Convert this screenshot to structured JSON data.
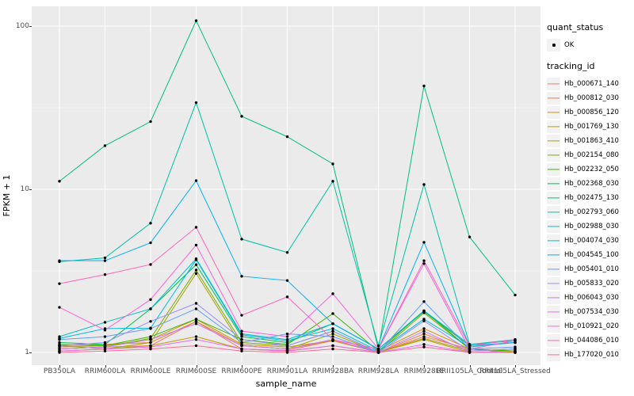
{
  "chart_data": {
    "type": "line",
    "title": "",
    "xlabel": "sample_name",
    "ylabel": "FPKM + 1",
    "y_scale": "log10",
    "ylim": [
      0.84,
      131
    ],
    "y_ticks": [
      1,
      10,
      100
    ],
    "y_minor_ticks": [
      3.1623,
      31.623
    ],
    "grid": true,
    "legend_position": "right",
    "panel_bg": "#EBEBEB",
    "grid_color": "#FFFFFF",
    "point_color": "#000000",
    "x_categories": [
      "PB350LA",
      "RRIM600LA",
      "RRIM600LE",
      "RRIM600SE",
      "RRIM600PE",
      "RRIM901LA",
      "RRIM928BA",
      "RRIM928LA",
      "RRIM928LE",
      "RRII105LA_Control",
      "RRII105LA_Stressed"
    ],
    "series": [
      {
        "name": "Hb_000671_140",
        "color": "#F8766D",
        "values": [
          1.05,
          1.08,
          1.1,
          1.55,
          1.05,
          1.03,
          1.18,
          1.0,
          1.25,
          1.05,
          1.0
        ]
      },
      {
        "name": "Hb_000812_030",
        "color": "#EA8331",
        "values": [
          1.1,
          1.12,
          1.15,
          1.55,
          1.1,
          1.05,
          1.18,
          1.0,
          1.3,
          1.02,
          1.05
        ]
      },
      {
        "name": "Hb_000856_120",
        "color": "#D89000",
        "values": [
          1.08,
          1.1,
          1.2,
          1.6,
          1.12,
          1.08,
          1.18,
          1.02,
          1.4,
          1.05,
          1.02
        ]
      },
      {
        "name": "Hb_001769_130",
        "color": "#C09B00",
        "values": [
          1.02,
          1.05,
          1.1,
          1.25,
          1.05,
          1.02,
          1.1,
          1.0,
          1.2,
          1.0,
          1.0
        ]
      },
      {
        "name": "Hb_001863_410",
        "color": "#A3A500",
        "values": [
          1.1,
          1.05,
          1.15,
          3.05,
          1.1,
          1.05,
          1.3,
          1.0,
          1.22,
          1.02,
          1.05
        ]
      },
      {
        "name": "Hb_002154_080",
        "color": "#7CAE00",
        "values": [
          1.05,
          1.08,
          1.22,
          3.2,
          1.15,
          1.1,
          1.35,
          1.0,
          1.75,
          1.05,
          1.0
        ]
      },
      {
        "name": "Hb_002232_050",
        "color": "#39B600",
        "values": [
          1.12,
          1.1,
          1.25,
          1.6,
          1.2,
          1.12,
          1.73,
          1.02,
          1.8,
          1.05,
          1.02
        ]
      },
      {
        "name": "Hb_002368_030",
        "color": "#00BB4E",
        "values": [
          1.15,
          1.12,
          1.85,
          3.45,
          1.25,
          1.15,
          1.5,
          1.05,
          1.78,
          1.1,
          1.15
        ]
      },
      {
        "name": "Hb_002475_130",
        "color": "#00BF7D",
        "values": [
          11.2,
          18.5,
          26.0,
          108.0,
          28.0,
          21.0,
          14.3,
          1.05,
          43.0,
          5.1,
          2.25
        ]
      },
      {
        "name": "Hb_002793_060",
        "color": "#00C1A3",
        "values": [
          3.6,
          3.8,
          6.2,
          34.0,
          4.95,
          4.1,
          11.2,
          1.1,
          10.7,
          1.12,
          1.2
        ]
      },
      {
        "name": "Hb_002988_030",
        "color": "#00BFC4",
        "values": [
          1.25,
          1.53,
          1.85,
          3.75,
          1.3,
          1.2,
          1.5,
          1.05,
          1.8,
          1.12,
          1.18
        ]
      },
      {
        "name": "Hb_004074_030",
        "color": "#00BAE0",
        "values": [
          1.22,
          1.4,
          1.41,
          3.7,
          1.28,
          1.18,
          1.4,
          1.02,
          1.6,
          1.08,
          1.15
        ]
      },
      {
        "name": "Hb_004545_100",
        "color": "#00B0F6",
        "values": [
          3.65,
          3.65,
          4.7,
          11.3,
          2.93,
          2.76,
          1.5,
          1.05,
          4.73,
          1.1,
          1.15
        ]
      },
      {
        "name": "Hb_005401_010",
        "color": "#619CFF",
        "values": [
          1.2,
          1.25,
          1.4,
          1.85,
          1.15,
          1.3,
          1.25,
          1.0,
          2.05,
          1.05,
          1.08
        ]
      },
      {
        "name": "Hb_005833_020",
        "color": "#9590FF",
        "values": [
          1.1,
          1.15,
          1.55,
          2.0,
          1.2,
          1.1,
          1.35,
          1.0,
          1.56,
          1.02,
          1.05
        ]
      },
      {
        "name": "Hb_006043_030",
        "color": "#C77CFF",
        "values": [
          1.05,
          1.08,
          1.2,
          1.5,
          1.1,
          1.05,
          1.2,
          1.0,
          1.35,
          1.0,
          1.02
        ]
      },
      {
        "name": "Hb_007534_030",
        "color": "#E76BF3",
        "values": [
          1.02,
          1.05,
          1.08,
          1.2,
          1.05,
          1.02,
          1.1,
          1.0,
          1.12,
          1.0,
          1.0
        ]
      },
      {
        "name": "Hb_010921_020",
        "color": "#FA62DB",
        "values": [
          1.89,
          1.37,
          2.11,
          4.55,
          1.35,
          1.25,
          2.29,
          1.05,
          3.5,
          1.05,
          1.18
        ]
      },
      {
        "name": "Hb_044086_010",
        "color": "#FF62BC",
        "values": [
          2.64,
          3.0,
          3.46,
          5.85,
          1.69,
          2.19,
          1.2,
          1.05,
          3.65,
          1.1,
          1.2
        ]
      },
      {
        "name": "Hb_177020_010",
        "color": "#FF6C90",
        "values": [
          1.0,
          1.02,
          1.05,
          1.1,
          1.02,
          1.0,
          1.05,
          1.0,
          1.08,
          1.0,
          1.0
        ]
      }
    ],
    "legend": {
      "quant_status_title": "quant_status",
      "quant_status_items": [
        {
          "label": "OK",
          "marker": "point"
        }
      ],
      "tracking_title": "tracking_id"
    }
  }
}
